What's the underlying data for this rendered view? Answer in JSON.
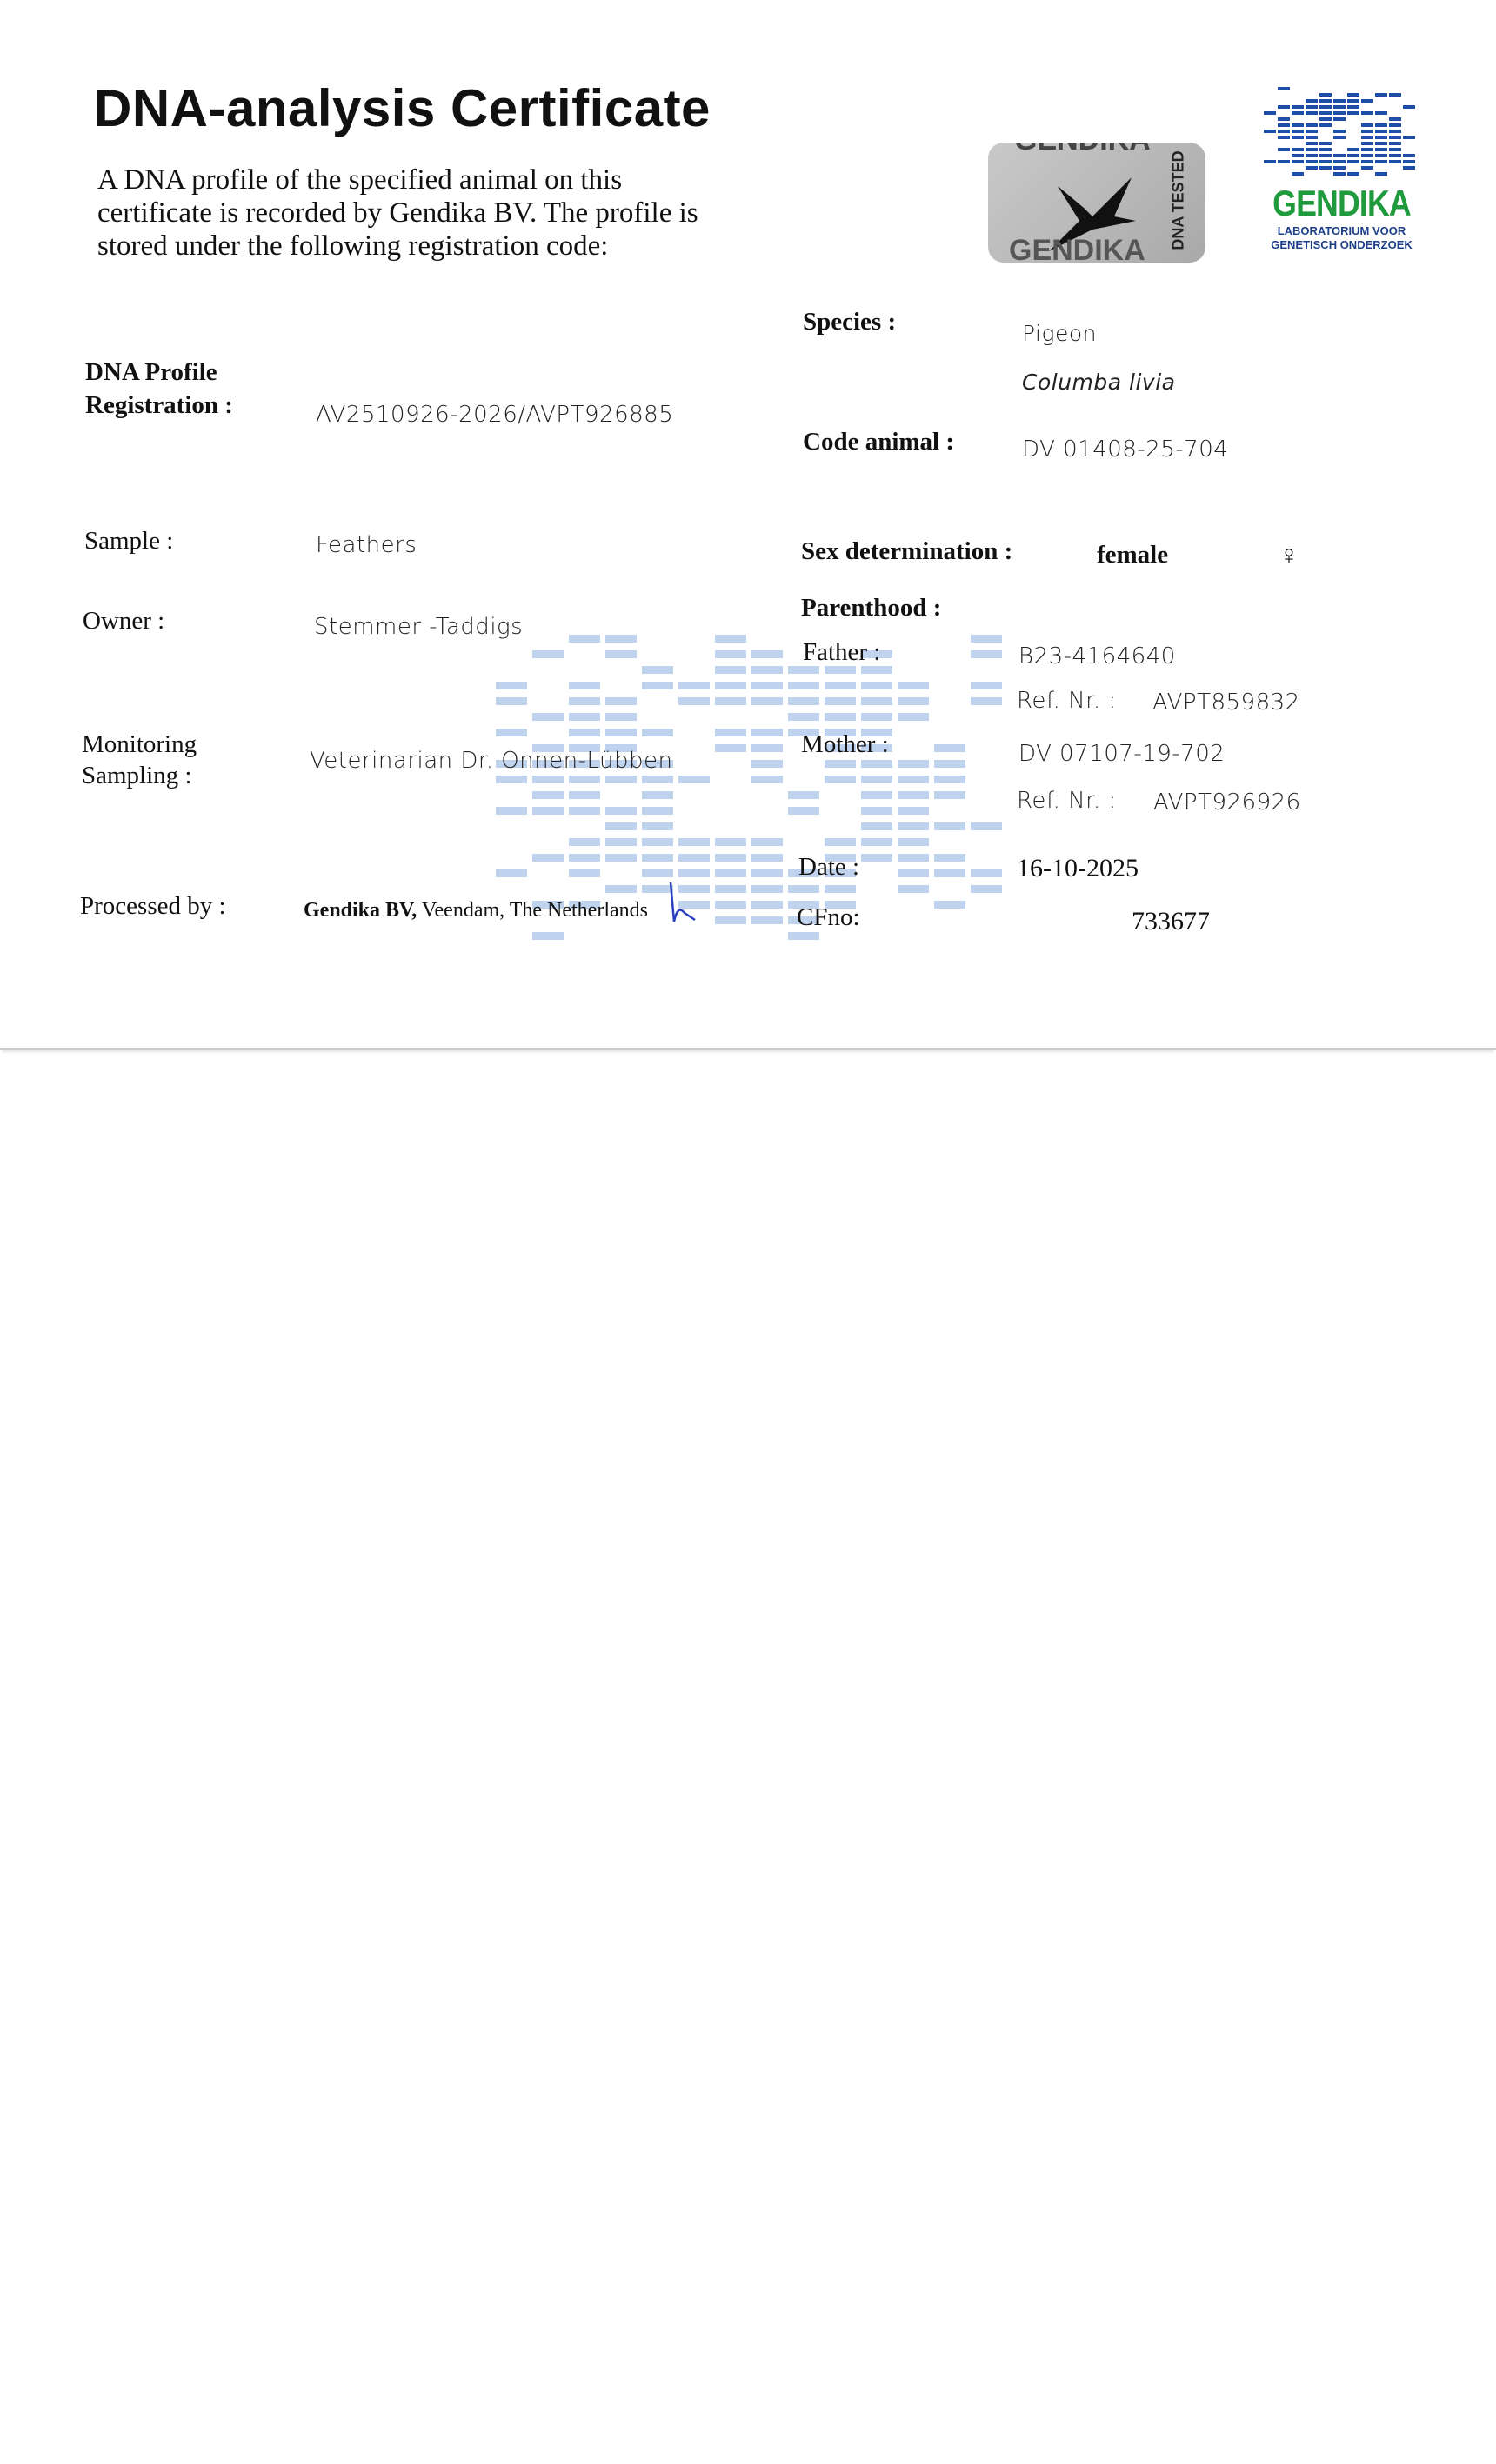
{
  "certificate": {
    "title": "DNA-analysis Certificate",
    "intro": "A DNA profile of the specified animal on this certificate is recorded by Gendika BV. The profile is stored under the following registration code:",
    "sticker": {
      "top_text": "GENDIKA",
      "brand": "GENDIKA",
      "side_text": "DNA TESTED"
    },
    "logo": {
      "name": "GENDIKA",
      "subtitle_line1": "LABORATORIUM VOOR",
      "subtitle_line2": "GENETISCH ONDERZOEK",
      "brand_color": "#1f9a3c",
      "mark_color": "#1d4fa8"
    },
    "left": {
      "registration_label_1": "DNA Profile",
      "registration_label_2": "Registration :",
      "registration_value": "AV2510926-2026/AVPT926885",
      "sample_label": "Sample :",
      "sample_value": "Feathers",
      "owner_label": "Owner :",
      "owner_value": "Stemmer -Taddigs",
      "monitoring_label_1": "Monitoring",
      "monitoring_label_2": "Sampling :",
      "monitoring_value": "Veterinarian Dr. Onnen-Lübben",
      "processed_label": "Processed by :",
      "processed_value_bold": "Gendika BV,",
      "processed_value_rest": " Veendam, The Netherlands"
    },
    "right": {
      "species_label": "Species :",
      "species_common": "Pigeon",
      "species_latin": "Columba livia",
      "code_label": "Code animal :",
      "code_value": "DV 01408-25-704",
      "sex_label": "Sex determination :",
      "sex_value": "female",
      "sex_symbol": "♀",
      "parenthood_label": "Parenthood :",
      "father_label": "Father :",
      "father_value": "B23-4164640",
      "father_ref_label": "Ref. Nr. :",
      "father_ref_value": "AVPT859832",
      "mother_label": "Mother :",
      "mother_value": "DV 07107-19-702",
      "mother_ref_label": "Ref. Nr. :",
      "mother_ref_value": "AVPT926926",
      "date_label": "Date :",
      "date_value": "16-10-2025",
      "cfno_label": "CFno:",
      "cfno_value": "733677"
    }
  }
}
